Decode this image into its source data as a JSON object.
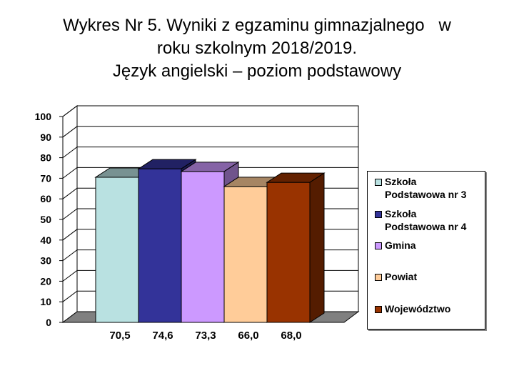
{
  "title_lines": [
    "Wykres Nr 5. Wyniki z egzaminu gimnazjalnego   w",
    "roku szkolnym 2018/2019.",
    "Język angielski – poziom podstawowy"
  ],
  "chart_data": {
    "type": "bar",
    "title": "Wykres Nr 5. Wyniki z egzaminu gimnazjalnego w roku szkolnym 2018/2019. Język angielski – poziom podstawowy",
    "xlabel": "",
    "ylabel": "",
    "ylim": [
      0,
      100
    ],
    "yticks": [
      "0",
      "10",
      "20",
      "30",
      "40",
      "50",
      "60",
      "70",
      "80",
      "90",
      "100"
    ],
    "grid": true,
    "legend_position": "right",
    "series": [
      {
        "name": "Szkoła\nPodstawowa nr 3",
        "value": 70.5,
        "label": "70,5",
        "color": "#b9e1e1"
      },
      {
        "name": "Szkoła\nPodstawowa nr 4",
        "value": 74.6,
        "label": "74,6",
        "color": "#333399"
      },
      {
        "name": "Gmina",
        "value": 73.3,
        "label": "73,3",
        "color": "#cc99ff"
      },
      {
        "name": "Powiat",
        "value": 66.0,
        "label": "66,0",
        "color": "#ffcc99"
      },
      {
        "name": "Województwo",
        "value": 68.0,
        "label": "68,0",
        "color": "#993300"
      }
    ]
  }
}
